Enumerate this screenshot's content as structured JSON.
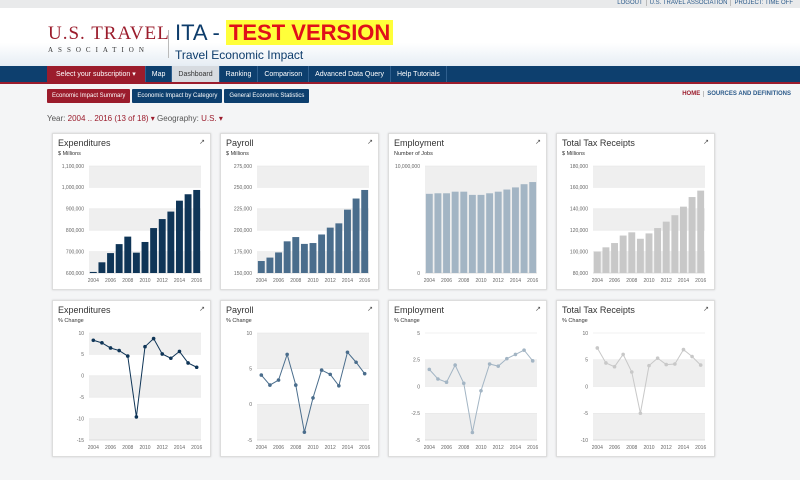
{
  "topbar": {
    "links": [
      "LOGOUT",
      "U.S. TRAVEL ASSOCIATION",
      "PROJECT: TIME OFF"
    ]
  },
  "header": {
    "logo_line1": "U.S. TRAVEL",
    "logo_line2": "ASSOCIATION",
    "app": "ITA -",
    "test": "TEST VERSION",
    "subtitle": "Travel Economic Impact"
  },
  "nav": {
    "subscription": "Select your subscription ▾",
    "items": [
      "Map",
      "Dashboard",
      "Ranking",
      "Comparison",
      "Advanced Data Query",
      "Help Tutorials"
    ],
    "active": "Dashboard"
  },
  "subnav": {
    "items": [
      "Economic Impact Summary",
      "Economic Impact by Category",
      "General Economic Statistics"
    ],
    "home": "HOME",
    "sources": "SOURCES AND DEFINITIONS"
  },
  "filters": {
    "year_label": "Year:",
    "year_value": "2004 .. 2016 (13 of 18) ▾",
    "geo_label": "Geography:",
    "geo_value": "U.S. ▾"
  },
  "icons": {
    "popout": "external-link-icon"
  },
  "chart_data": [
    {
      "type": "bar",
      "title": "Expenditures",
      "subtitle": "$ Millions",
      "color": "#0f3557",
      "categories": [
        2004,
        2005,
        2006,
        2007,
        2008,
        2009,
        2010,
        2011,
        2012,
        2013,
        2014,
        2015,
        2016
      ],
      "values": [
        605000,
        650000,
        693000,
        735000,
        770000,
        695000,
        745000,
        810000,
        852000,
        887000,
        938000,
        968000,
        988000
      ],
      "ylim": [
        600000,
        1100000
      ],
      "yticks": [
        600000,
        700000,
        800000,
        900000,
        1000000,
        1100000
      ],
      "ytick_labels": [
        "600,000",
        "700,000",
        "800,000",
        "900,000",
        "1,000,000",
        "1,100,000"
      ]
    },
    {
      "type": "bar",
      "title": "Payroll",
      "subtitle": "$ Millions",
      "color": "#4a6d8c",
      "categories": [
        2004,
        2005,
        2006,
        2007,
        2008,
        2009,
        2010,
        2011,
        2012,
        2013,
        2014,
        2015,
        2016
      ],
      "values": [
        164000,
        168000,
        174000,
        187000,
        192000,
        184000,
        185000,
        195000,
        203000,
        208000,
        224000,
        237000,
        247000
      ],
      "ylim": [
        150000,
        275000
      ],
      "yticks": [
        150000,
        175000,
        200000,
        225000,
        250000,
        275000
      ],
      "ytick_labels": [
        "150,000",
        "175,000",
        "200,000",
        "225,000",
        "250,000",
        "275,000"
      ]
    },
    {
      "type": "bar",
      "title": "Employment",
      "subtitle": "Number of Jobs",
      "color": "#a3b5c4",
      "categories": [
        2004,
        2005,
        2006,
        2007,
        2008,
        2009,
        2010,
        2011,
        2012,
        2013,
        2014,
        2015,
        2016
      ],
      "values": [
        7400000,
        7450000,
        7450000,
        7600000,
        7600000,
        7300000,
        7300000,
        7450000,
        7600000,
        7800000,
        8000000,
        8300000,
        8500000
      ],
      "ylim": [
        0,
        10000000
      ],
      "yticks": [
        0,
        10000000
      ],
      "ytick_labels": [
        "0",
        "10,000,000"
      ]
    },
    {
      "type": "bar",
      "title": "Total Tax Receipts",
      "subtitle": "$ Millions",
      "color": "#c8c8c8",
      "categories": [
        2004,
        2005,
        2006,
        2007,
        2008,
        2009,
        2010,
        2011,
        2012,
        2013,
        2014,
        2015,
        2016
      ],
      "values": [
        100000,
        104000,
        108000,
        115000,
        118000,
        112000,
        117000,
        122000,
        128000,
        134000,
        142000,
        151000,
        157000
      ],
      "ylim": [
        80000,
        180000
      ],
      "yticks": [
        80000,
        100000,
        120000,
        140000,
        160000,
        180000
      ],
      "ytick_labels": [
        "80,000",
        "100,000",
        "120,000",
        "140,000",
        "160,000",
        "180,000"
      ]
    },
    {
      "type": "line",
      "title": "Expenditures",
      "subtitle": "% Change",
      "color": "#0f3557",
      "categories": [
        2004,
        2005,
        2006,
        2007,
        2008,
        2009,
        2010,
        2011,
        2012,
        2013,
        2014,
        2015,
        2016
      ],
      "values": [
        8.3,
        7.7,
        6.5,
        5.9,
        4.6,
        -9.6,
        6.8,
        8.7,
        5.1,
        4.1,
        5.7,
        3.0,
        2.0
      ],
      "ylim": [
        -15,
        10
      ],
      "yticks": [
        -15,
        -10,
        -5,
        0,
        5,
        10
      ],
      "ytick_labels": [
        "-15",
        "-10",
        "-5",
        "0",
        "5",
        "10"
      ]
    },
    {
      "type": "line",
      "title": "Payroll",
      "subtitle": "% Change",
      "color": "#4a6d8c",
      "categories": [
        2004,
        2005,
        2006,
        2007,
        2008,
        2009,
        2010,
        2011,
        2012,
        2013,
        2014,
        2015,
        2016
      ],
      "values": [
        4.1,
        2.7,
        3.4,
        7.0,
        2.7,
        -3.9,
        0.9,
        4.8,
        4.2,
        2.6,
        7.3,
        5.9,
        4.3
      ],
      "ylim": [
        -5,
        10
      ],
      "yticks": [
        -5,
        0,
        5,
        10
      ],
      "ytick_labels": [
        "-5",
        "0",
        "5",
        "10"
      ]
    },
    {
      "type": "line",
      "title": "Employment",
      "subtitle": "% Change",
      "color": "#a3b5c4",
      "categories": [
        2004,
        2005,
        2006,
        2007,
        2008,
        2009,
        2010,
        2011,
        2012,
        2013,
        2014,
        2015,
        2016
      ],
      "values": [
        1.6,
        0.7,
        0.4,
        2.0,
        0.3,
        -4.3,
        -0.4,
        2.1,
        1.9,
        2.6,
        3.0,
        3.4,
        2.4
      ],
      "ylim": [
        -5,
        5
      ],
      "yticks": [
        -5,
        -2.5,
        0,
        2.5,
        5
      ],
      "ytick_labels": [
        "-5",
        "-2.5",
        "0",
        "2.5",
        "5"
      ]
    },
    {
      "type": "line",
      "title": "Total Tax Receipts",
      "subtitle": "% Change",
      "color": "#c8c8c8",
      "categories": [
        2004,
        2005,
        2006,
        2007,
        2008,
        2009,
        2010,
        2011,
        2012,
        2013,
        2014,
        2015,
        2016
      ],
      "values": [
        7.2,
        4.4,
        3.7,
        6.0,
        2.7,
        -5.0,
        3.9,
        5.3,
        4.1,
        4.2,
        6.9,
        5.6,
        4.0
      ],
      "ylim": [
        -10,
        10
      ],
      "yticks": [
        -10,
        -5,
        0,
        5,
        10
      ],
      "ytick_labels": [
        "-10",
        "-5",
        "0",
        "5",
        "10"
      ]
    }
  ]
}
